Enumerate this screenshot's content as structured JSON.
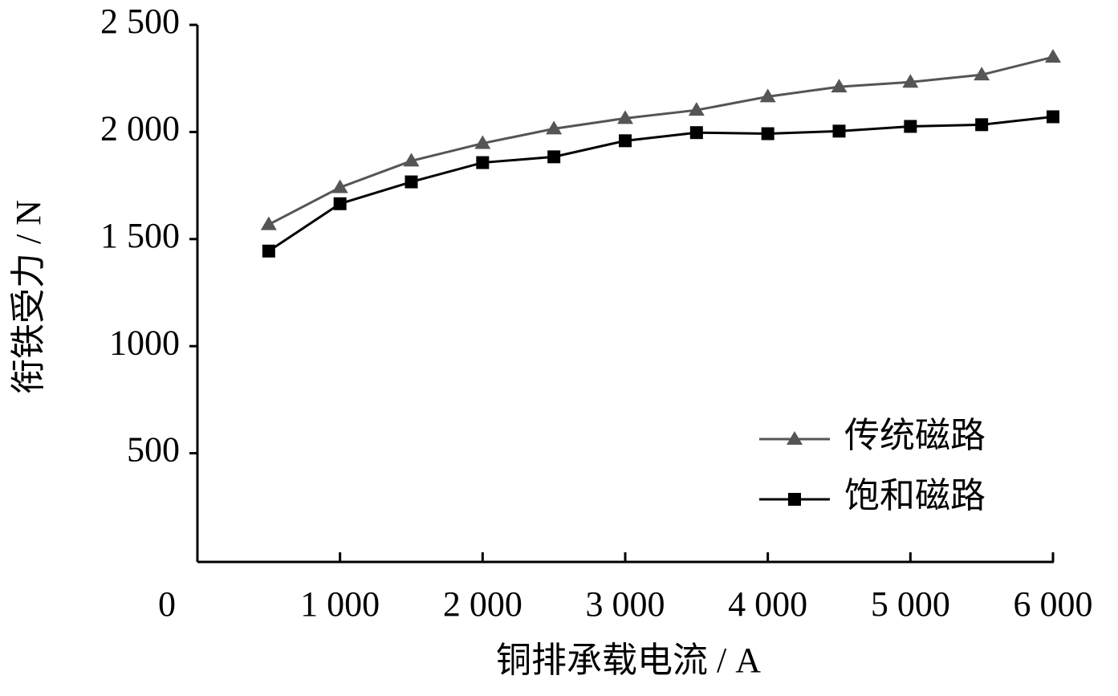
{
  "chart_data": {
    "type": "line",
    "x_label": "铜排承载电流 / A",
    "y_label": "衔铁受力 / N",
    "x": [
      500,
      1000,
      1500,
      2000,
      2500,
      3000,
      3500,
      4000,
      4500,
      5000,
      5500,
      6000
    ],
    "series": [
      {
        "name": "传统磁路",
        "color": "#555555",
        "marker": "triangle",
        "values": [
          1568,
          1741,
          1865,
          1947,
          2015,
          2064,
          2102,
          2165,
          2211,
          2233,
          2267,
          2350
        ]
      },
      {
        "name": "饱和磁路",
        "color": "#000000",
        "marker": "square",
        "values": [
          1444,
          1665,
          1767,
          1857,
          1884,
          1959,
          1997,
          1992,
          2004,
          2026,
          2034,
          2071
        ]
      }
    ],
    "xlim": [
      0,
      6000
    ],
    "xticks": [
      0,
      {
        "value": 1000,
        "label": "1 000"
      },
      {
        "value": 2000,
        "label": "2 000"
      },
      {
        "value": 3000,
        "label": "3 000"
      },
      {
        "value": 4000,
        "label": "4 000"
      },
      {
        "value": 5000,
        "label": "5 000"
      },
      {
        "value": 6000,
        "label": "6 000"
      }
    ],
    "ylim": [
      0,
      2500
    ],
    "yticks": [
      500,
      1000,
      {
        "value": 1500,
        "label": "1 500"
      },
      {
        "value": 2000,
        "label": "2 000"
      },
      {
        "value": 2500,
        "label": "2 500"
      }
    ],
    "legend": "lower right"
  }
}
